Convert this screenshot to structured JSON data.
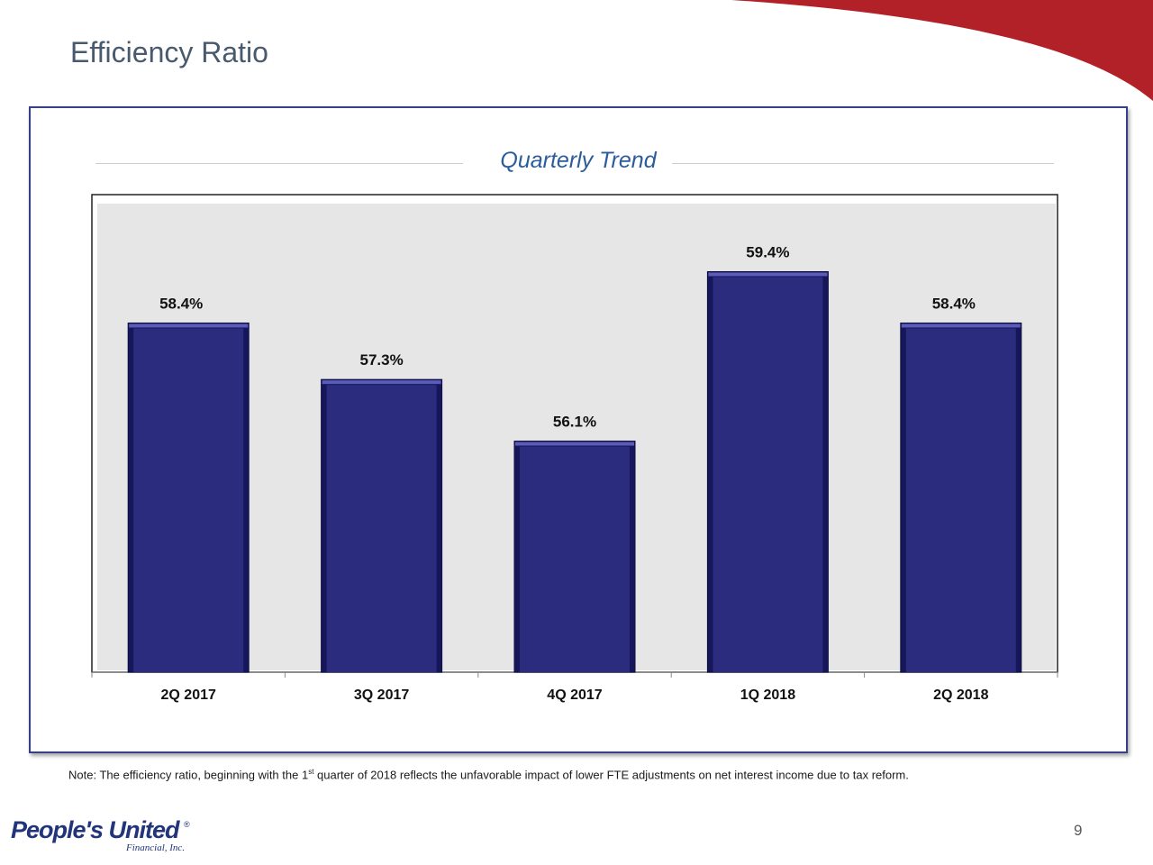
{
  "page": {
    "title": "Efficiency Ratio",
    "note_prefix": "Note: The efficiency ratio, beginning with the 1",
    "note_sup": "st",
    "note_suffix": " quarter of 2018 reflects the unfavorable impact of lower FTE adjustments on net interest income due to tax reform.",
    "page_number": "9"
  },
  "logo": {
    "name": "People's United",
    "registered": "®",
    "subtitle": "Financial, Inc."
  },
  "colors": {
    "bar": "#2b2c7e",
    "bar_dark": "#16175a",
    "bar_light": "#5a5cb8",
    "plot_bg": "#e6e6e6",
    "brand_red": "#b22028",
    "title_blue": "#2b5c9c"
  },
  "chart_data": {
    "type": "bar",
    "title": "Quarterly Trend",
    "categories": [
      "2Q 2017",
      "3Q 2017",
      "4Q 2017",
      "1Q 2018",
      "2Q 2018"
    ],
    "values": [
      58.4,
      57.3,
      56.1,
      59.4,
      58.4
    ],
    "data_labels": [
      "58.4%",
      "57.3%",
      "56.1%",
      "59.4%",
      "58.4%"
    ],
    "unit": "%",
    "xlabel": "",
    "ylabel": "",
    "ylim": [
      51.6,
      60.9
    ],
    "grid": false,
    "legend": "none"
  }
}
